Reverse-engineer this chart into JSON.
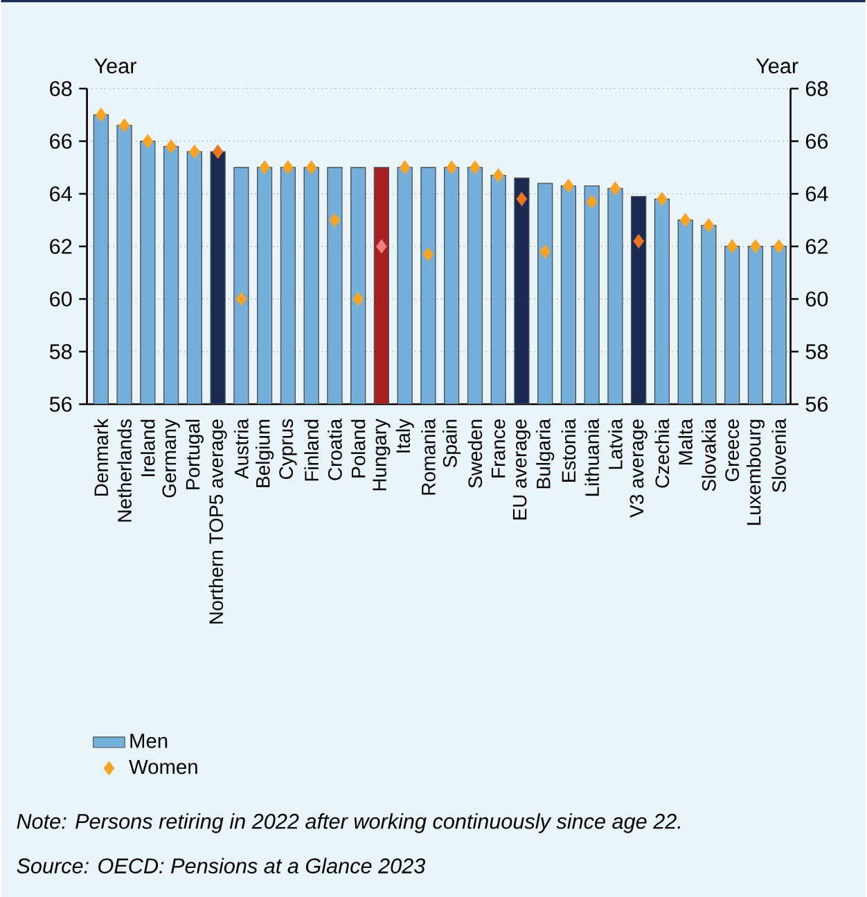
{
  "chart_data": {
    "type": "bar",
    "categories": [
      "Denmark",
      "Netherlands",
      "Ireland",
      "Germany",
      "Portugal",
      "Northern TOP5 average",
      "Austria",
      "Belgium",
      "Cyprus",
      "Finland",
      "Croatia",
      "Poland",
      "Hungary",
      "Italy",
      "Romania",
      "Spain",
      "Sweden",
      "France",
      "EU average",
      "Bulgaria",
      "Estonia",
      "Lithuania",
      "Latvia",
      "V3 average",
      "Czechia",
      "Malta",
      "Slovakia",
      "Greece",
      "Luxembourg",
      "Slovenia"
    ],
    "series": [
      {
        "name": "Men",
        "color": "#74afdc",
        "colors": [
          "#74afdc",
          "#74afdc",
          "#74afdc",
          "#74afdc",
          "#74afdc",
          "#1a2a52",
          "#74afdc",
          "#74afdc",
          "#74afdc",
          "#74afdc",
          "#74afdc",
          "#74afdc",
          "#a82024",
          "#74afdc",
          "#74afdc",
          "#74afdc",
          "#74afdc",
          "#74afdc",
          "#1a2a52",
          "#74afdc",
          "#74afdc",
          "#74afdc",
          "#74afdc",
          "#1a2a52",
          "#74afdc",
          "#74afdc",
          "#74afdc",
          "#74afdc",
          "#74afdc",
          "#74afdc"
        ],
        "values": [
          67,
          66.6,
          66,
          65.8,
          65.6,
          65.6,
          65,
          65,
          65,
          65,
          65,
          65,
          65,
          65,
          65,
          65,
          65,
          64.7,
          64.6,
          64.4,
          64.3,
          64.3,
          64.2,
          63.9,
          63.8,
          63,
          62.8,
          62,
          62,
          62
        ]
      },
      {
        "name": "Women",
        "type": "scatter",
        "marker": "diamond",
        "color": "#f7a325",
        "colors": [
          "#f7a325",
          "#f7a325",
          "#f7a325",
          "#f7a325",
          "#f7a325",
          "#e87722",
          "#f7a325",
          "#f7a325",
          "#f7a325",
          "#f7a325",
          "#f7a325",
          "#f7a325",
          "#f08080",
          "#f7a325",
          "#f7a325",
          "#f7a325",
          "#f7a325",
          "#f7a325",
          "#e87722",
          "#f7a325",
          "#f7a325",
          "#f7a325",
          "#f7a325",
          "#e87722",
          "#f7a325",
          "#f7a325",
          "#f7a325",
          "#f7a325",
          "#f7a325",
          "#f7a325"
        ],
        "values": [
          67,
          66.6,
          66,
          65.8,
          65.6,
          65.6,
          60,
          65,
          65,
          65,
          63,
          60,
          62,
          65,
          61.7,
          65,
          65,
          64.7,
          63.8,
          61.8,
          64.3,
          63.7,
          64.2,
          62.2,
          63.8,
          63,
          62.8,
          62,
          62,
          62
        ]
      }
    ],
    "ylim": [
      56,
      68
    ],
    "yticks": [
      56,
      58,
      60,
      62,
      64,
      66,
      68
    ],
    "y2lim": [
      56,
      68
    ],
    "y2ticks": [
      56,
      58,
      60,
      62,
      64,
      66,
      68
    ],
    "grid": "y",
    "legend": "bottom left",
    "annotations": [
      "Year",
      "Year",
      "*Note: Persons retiring in 2022 after working continuously since age 22.*",
      "*Source: OECD: Pensions at a Glance 2023*"
    ]
  }
}
